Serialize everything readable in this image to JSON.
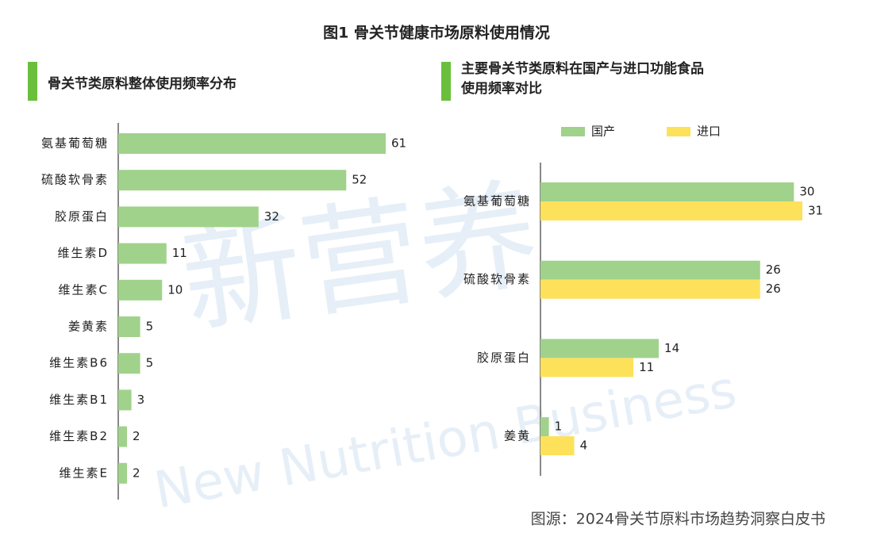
{
  "title": "图1  骨关节健康市场原料使用情况",
  "source": "图源：2024骨关节原料市场趋势洞察白皮书",
  "watermark": {
    "cn": "新营养",
    "en": "New Nutrition Business"
  },
  "chart_data": [
    {
      "type": "bar",
      "orientation": "horizontal",
      "title": "骨关节类原料整体使用频率分布",
      "categories": [
        "氨基葡萄糖",
        "硫酸软骨素",
        "胶原蛋白",
        "维生素D",
        "维生素C",
        "姜黄素",
        "维生素B6",
        "维生素B1",
        "维生素B2",
        "维生素E"
      ],
      "values": [
        61,
        52,
        32,
        11,
        10,
        5,
        5,
        3,
        2,
        2
      ],
      "color": "#a0d28c",
      "xlim": [
        0,
        61
      ]
    },
    {
      "type": "bar",
      "orientation": "horizontal",
      "title": [
        "主要骨关节类原料在国产与进口功能食品",
        "使用频率对比"
      ],
      "categories": [
        "氨基葡萄糖",
        "硫酸软骨素",
        "胶原蛋白",
        "姜黄"
      ],
      "series": [
        {
          "name": "国产",
          "color": "#a0d28c",
          "values": [
            30,
            26,
            14,
            1
          ]
        },
        {
          "name": "进口",
          "color": "#fde15a",
          "values": [
            31,
            26,
            11,
            4
          ]
        }
      ],
      "xlim": [
        0,
        31
      ]
    }
  ]
}
